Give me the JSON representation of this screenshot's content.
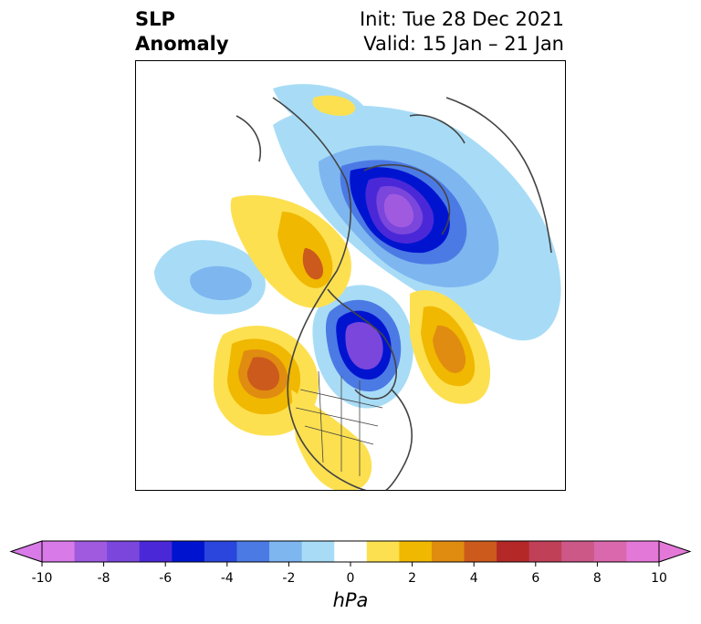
{
  "header": {
    "title_line1": "SLP",
    "title_line2": "Anomaly",
    "init": "Init: Tue 28 Dec 2021",
    "valid": "Valid: 15 Jan – 21 Jan"
  },
  "map": {
    "variable": "SLP Anomaly",
    "region": "North America / Arctic (polar stereographic)"
  },
  "colorbar": {
    "units": "hPa",
    "extend": "both",
    "levels": [
      -10,
      -9,
      -8,
      -7,
      -6,
      -5,
      -4,
      -3,
      -2,
      -1,
      1,
      2,
      3,
      4,
      5,
      6,
      7,
      8,
      9,
      10
    ],
    "colors": [
      "#d87ae8",
      "#a05ae0",
      "#7a46dc",
      "#4a28d8",
      "#0014d0",
      "#2a46dc",
      "#4c7ae4",
      "#7eb6f0",
      "#a8dcf6",
      "#ffffff",
      "#fde050",
      "#f0b800",
      "#e08c10",
      "#cc5a1c",
      "#b42828",
      "#c04058",
      "#cc5888",
      "#da68ac",
      "#e478d8"
    ],
    "tick_values": [
      "-10",
      "-8",
      "-6",
      "-4",
      "-2",
      "0",
      "2",
      "4",
      "6",
      "8",
      "10"
    ]
  }
}
